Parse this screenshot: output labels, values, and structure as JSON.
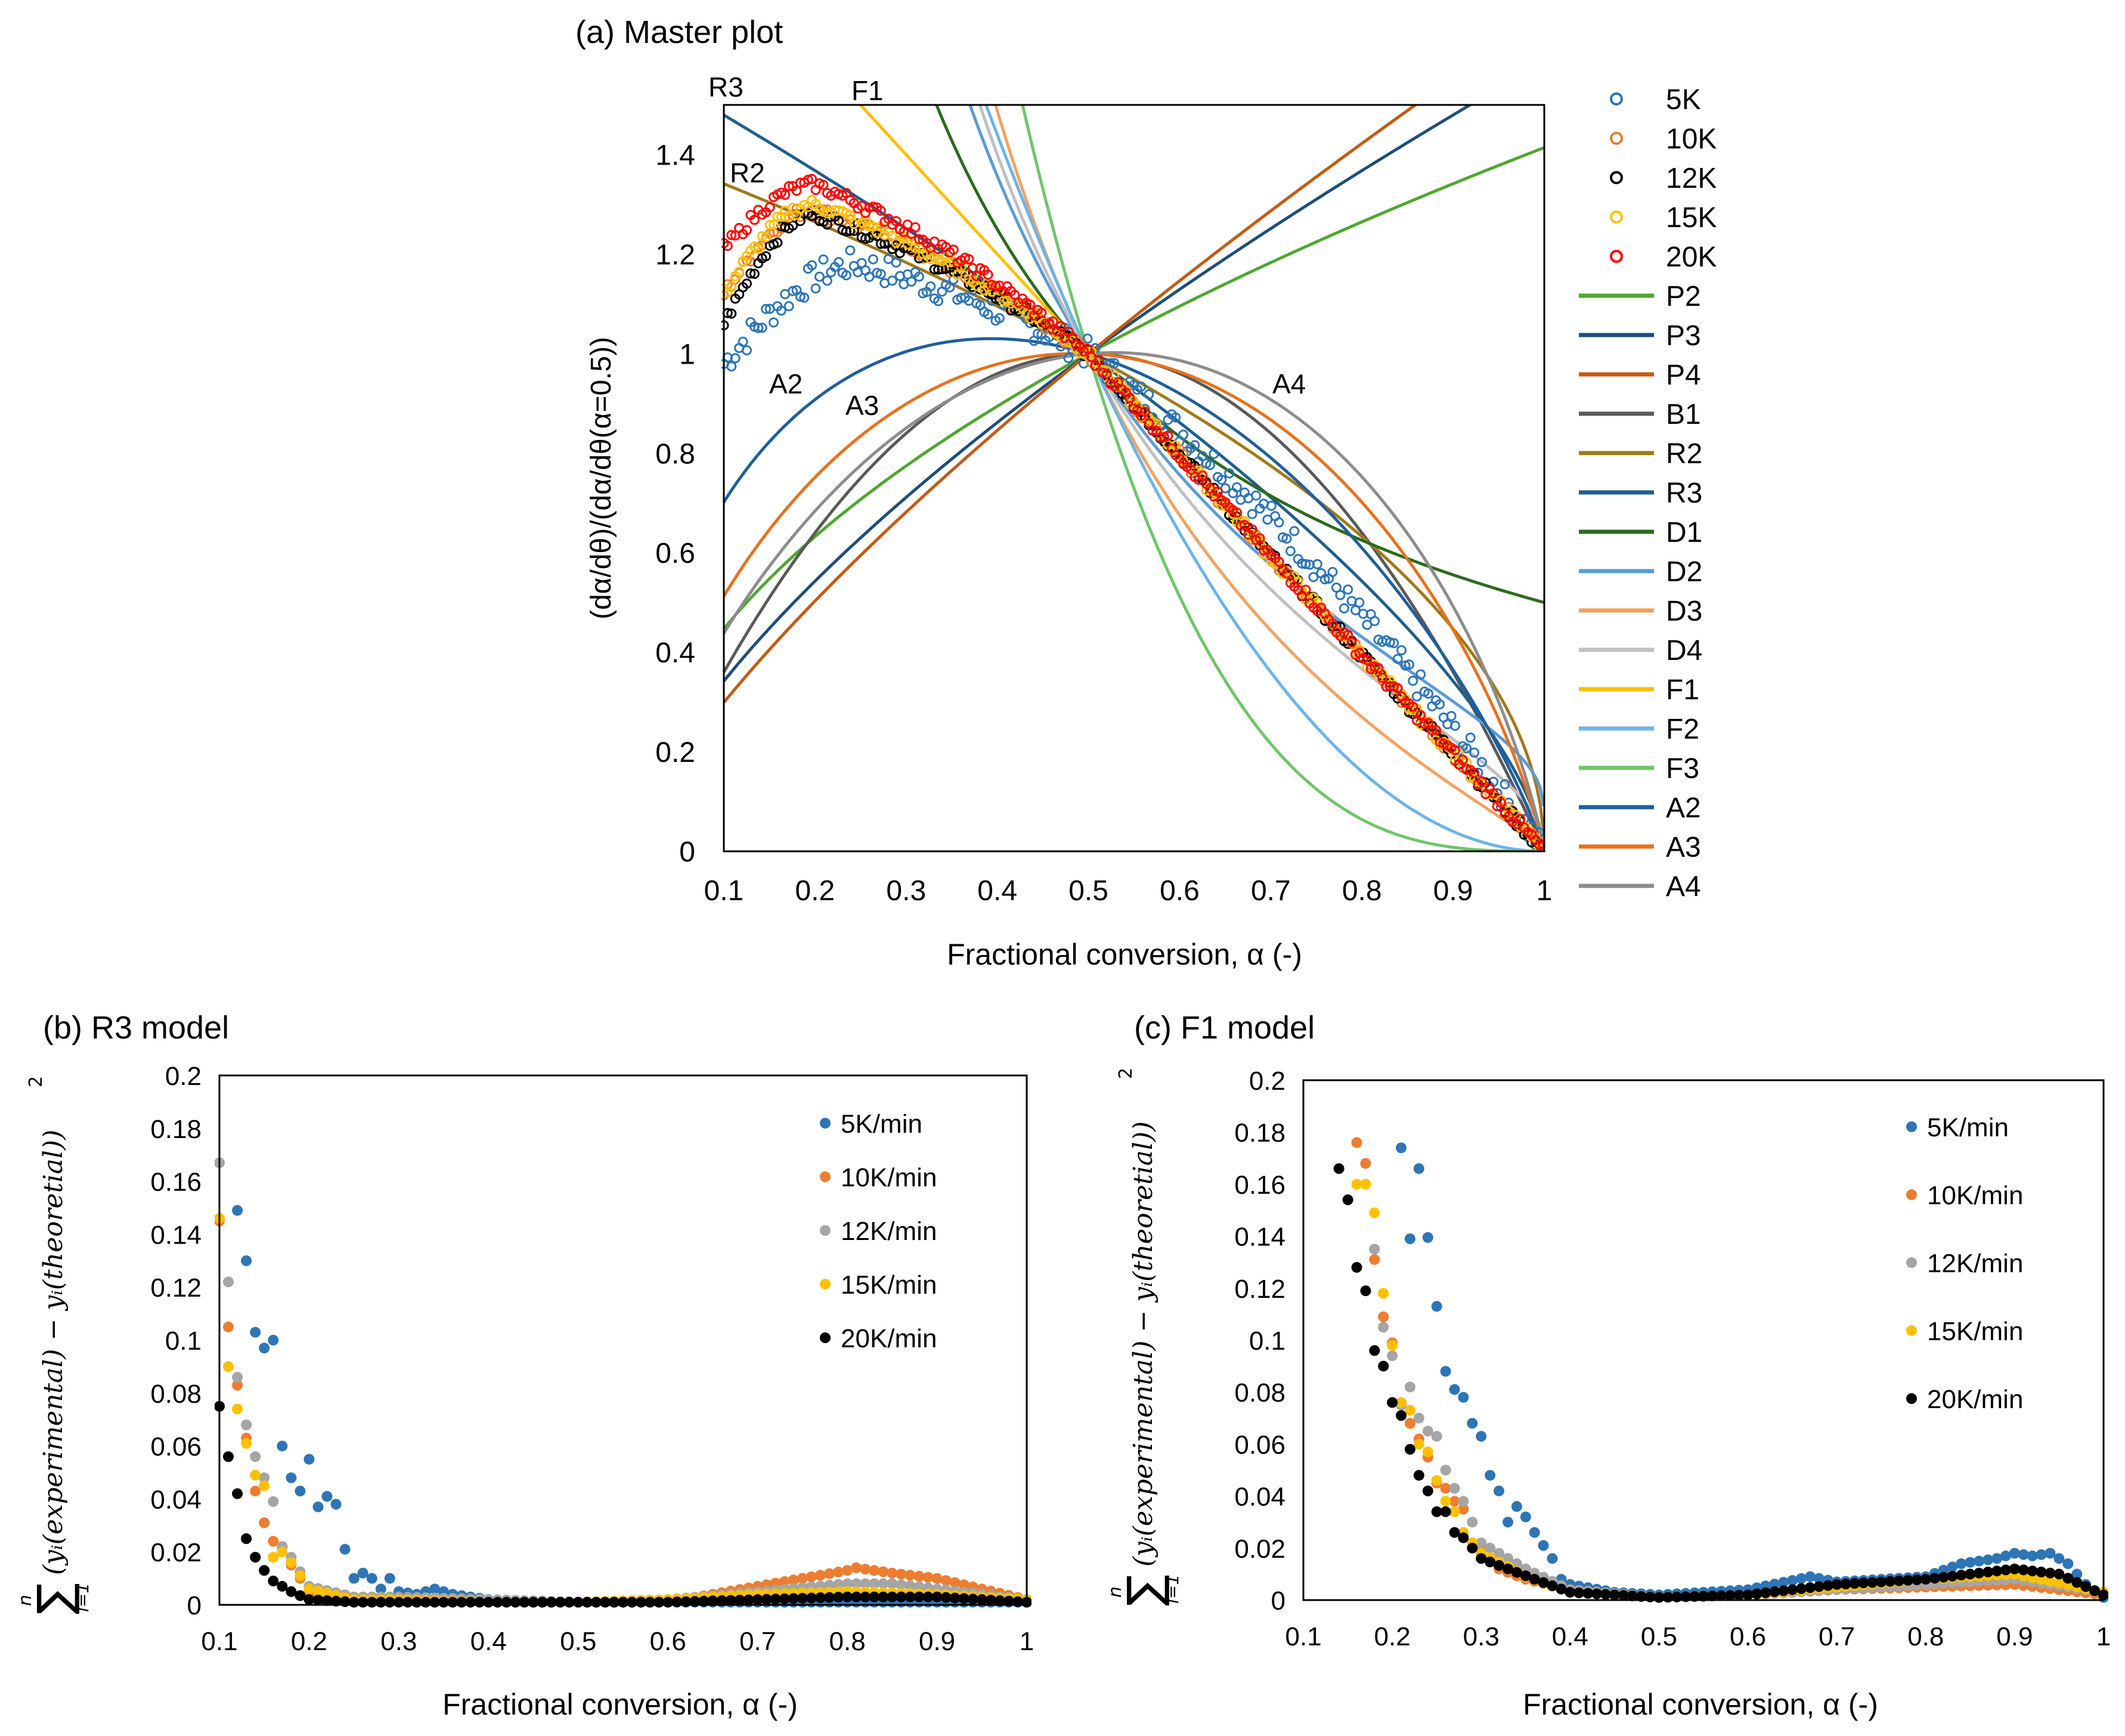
{
  "chart_data": [
    {
      "id": "a",
      "type": "scatter+line",
      "title": "(a) Master plot",
      "xlabel": "Fractional conversion, α (-)",
      "ylabel": "(dα/dθ)/(dα/dθ(α=0.5))",
      "xlim": [
        0.1,
        1
      ],
      "ylim": [
        0,
        1.5
      ],
      "xticks": [
        "0.1",
        "0.2",
        "0.3",
        "0.4",
        "0.5",
        "0.6",
        "0.7",
        "0.8",
        "0.9",
        "1"
      ],
      "yticks": [
        "0",
        "0.2",
        "0.4",
        "0.6",
        "0.8",
        "1",
        "1.2",
        "1.4"
      ],
      "experimental": [
        {
          "name": "5K",
          "color": "#2E75B6",
          "peak_x": 0.25,
          "peak_y": 1.18,
          "start_y": 0.98
        },
        {
          "name": "10K",
          "color": "#ED7D31",
          "peak_x": 0.2,
          "peak_y": 1.29,
          "start_y": 1.12
        },
        {
          "name": "12K",
          "color": "#000000",
          "peak_x": 0.2,
          "peak_y": 1.28,
          "start_y": 1.06
        },
        {
          "name": "15K",
          "color": "#FFC000",
          "peak_x": 0.2,
          "peak_y": 1.3,
          "start_y": 1.12
        },
        {
          "name": "20K",
          "color": "#FF0000",
          "peak_x": 0.2,
          "peak_y": 1.34,
          "start_y": 1.21
        }
      ],
      "models": [
        {
          "name": "P2",
          "color": "#4EA72E"
        },
        {
          "name": "P3",
          "color": "#1F4E79"
        },
        {
          "name": "P4",
          "color": "#C55A11"
        },
        {
          "name": "B1",
          "color": "#595959"
        },
        {
          "name": "R2",
          "color": "#A07A1A"
        },
        {
          "name": "R3",
          "color": "#1F5F8B"
        },
        {
          "name": "D1",
          "color": "#2D6A1F"
        },
        {
          "name": "D2",
          "color": "#5B9BD5"
        },
        {
          "name": "D3",
          "color": "#F4A261"
        },
        {
          "name": "D4",
          "color": "#BFBFBF"
        },
        {
          "name": "F1",
          "color": "#FFC000"
        },
        {
          "name": "F2",
          "color": "#6CB4E8"
        },
        {
          "name": "F3",
          "color": "#70C56A"
        },
        {
          "name": "A2",
          "color": "#1F5F9B"
        },
        {
          "name": "A3",
          "color": "#E8711C"
        },
        {
          "name": "A4",
          "color": "#8C8C8C"
        }
      ],
      "annotations": [
        "R3",
        "F1",
        "R2",
        "A2",
        "A3",
        "A4"
      ]
    },
    {
      "id": "b",
      "type": "scatter",
      "title": "(b) R3 model",
      "xlabel": "Fractional conversion, α (-)",
      "ylabel_parts": {
        "sum_top": "n",
        "sum_bottom": "i=1",
        "expr": "(yᵢ(experimental) − yᵢ(theoretial))",
        "exp": "2"
      },
      "xlim": [
        0.1,
        1
      ],
      "ylim": [
        0,
        0.2
      ],
      "xticks": [
        "0.1",
        "0.2",
        "0.3",
        "0.4",
        "0.5",
        "0.6",
        "0.7",
        "0.8",
        "0.9",
        "1"
      ],
      "yticks": [
        "0",
        "0.02",
        "0.04",
        "0.06",
        "0.08",
        "0.1",
        "0.12",
        "0.14",
        "0.16",
        "0.18",
        "0.2"
      ],
      "series": [
        {
          "name": "5K/min",
          "color": "#2E75B6",
          "x": [
            0.12,
            0.13,
            0.14,
            0.15,
            0.16,
            0.17,
            0.18,
            0.19,
            0.2,
            0.21,
            0.22,
            0.23,
            0.24,
            0.25,
            0.26,
            0.27,
            0.28,
            0.29,
            0.3,
            0.32,
            0.34,
            0.36,
            0.4,
            0.5,
            0.6,
            0.7,
            0.8,
            0.9,
            1.0
          ],
          "values": [
            0.149,
            0.13,
            0.103,
            0.097,
            0.1,
            0.06,
            0.048,
            0.043,
            0.055,
            0.037,
            0.041,
            0.038,
            0.021,
            0.01,
            0.012,
            0.01,
            0.006,
            0.01,
            0.005,
            0.004,
            0.006,
            0.004,
            0.002,
            0.001,
            0.001,
            0.001,
            0.001,
            0.001,
            0.001
          ]
        },
        {
          "name": "10K/min",
          "color": "#ED7D31",
          "x": [
            0.1,
            0.11,
            0.12,
            0.13,
            0.14,
            0.15,
            0.16,
            0.17,
            0.18,
            0.2,
            0.25,
            0.3,
            0.4,
            0.5,
            0.6,
            0.65,
            0.7,
            0.75,
            0.8,
            0.81,
            0.85,
            0.9,
            0.95,
            1.0
          ],
          "values": [
            0.145,
            0.105,
            0.083,
            0.063,
            0.043,
            0.031,
            0.024,
            0.022,
            0.015,
            0.005,
            0.002,
            0.002,
            0.001,
            0.001,
            0.001,
            0.004,
            0.007,
            0.01,
            0.013,
            0.014,
            0.012,
            0.01,
            0.006,
            0.002
          ]
        },
        {
          "name": "12K/min",
          "color": "#A5A5A5",
          "x": [
            0.1,
            0.11,
            0.12,
            0.13,
            0.14,
            0.15,
            0.16,
            0.17,
            0.18,
            0.2,
            0.25,
            0.3,
            0.4,
            0.5,
            0.6,
            0.7,
            0.8,
            0.85,
            0.9,
            0.95,
            1.0
          ],
          "values": [
            0.167,
            0.122,
            0.086,
            0.068,
            0.056,
            0.048,
            0.039,
            0.022,
            0.018,
            0.007,
            0.003,
            0.003,
            0.002,
            0.001,
            0.002,
            0.005,
            0.008,
            0.008,
            0.006,
            0.004,
            0.002
          ]
        },
        {
          "name": "15K/min",
          "color": "#FFC000",
          "x": [
            0.1,
            0.11,
            0.12,
            0.13,
            0.14,
            0.15,
            0.16,
            0.17,
            0.18,
            0.2,
            0.25,
            0.3,
            0.4,
            0.5,
            0.6,
            0.7,
            0.8,
            0.9,
            1.0
          ],
          "values": [
            0.146,
            0.09,
            0.074,
            0.061,
            0.049,
            0.045,
            0.018,
            0.02,
            0.016,
            0.006,
            0.002,
            0.002,
            0.001,
            0.001,
            0.002,
            0.004,
            0.005,
            0.004,
            0.002
          ]
        },
        {
          "name": "20K/min",
          "color": "#000000",
          "x": [
            0.1,
            0.11,
            0.12,
            0.13,
            0.14,
            0.15,
            0.16,
            0.17,
            0.18,
            0.2,
            0.25,
            0.3,
            0.4,
            0.5,
            0.6,
            0.7,
            0.8,
            0.9,
            1.0
          ],
          "values": [
            0.075,
            0.056,
            0.042,
            0.025,
            0.018,
            0.013,
            0.009,
            0.007,
            0.005,
            0.002,
            0.001,
            0.001,
            0.001,
            0.001,
            0.001,
            0.002,
            0.003,
            0.003,
            0.001
          ]
        }
      ]
    },
    {
      "id": "c",
      "type": "scatter",
      "title": "(c) F1 model",
      "xlabel": "Fractional conversion, α (-)",
      "ylabel_parts": {
        "sum_top": "n",
        "sum_bottom": "i=1",
        "expr": "(yᵢ(experimental) − yᵢ(theoretial))",
        "exp": "2"
      },
      "xlim": [
        0.1,
        1
      ],
      "ylim": [
        0,
        0.2
      ],
      "xticks": [
        "0.1",
        "0.2",
        "0.3",
        "0.4",
        "0.5",
        "0.6",
        "0.7",
        "0.8",
        "0.9",
        "1"
      ],
      "yticks": [
        "0",
        "0.02",
        "0.04",
        "0.06",
        "0.08",
        "0.1",
        "0.12",
        "0.14",
        "0.16",
        "0.18",
        "0.2"
      ],
      "series": [
        {
          "name": "5K/min",
          "color": "#2E75B6",
          "x": [
            0.21,
            0.22,
            0.23,
            0.25,
            0.26,
            0.27,
            0.28,
            0.29,
            0.3,
            0.31,
            0.32,
            0.33,
            0.34,
            0.35,
            0.36,
            0.37,
            0.38,
            0.39,
            0.4,
            0.45,
            0.5,
            0.6,
            0.67,
            0.7,
            0.8,
            0.84,
            0.88,
            0.9,
            0.92,
            0.94,
            0.96,
            0.98,
            1.0
          ],
          "values": [
            0.174,
            0.139,
            0.166,
            0.113,
            0.088,
            0.081,
            0.078,
            0.068,
            0.063,
            0.048,
            0.042,
            0.03,
            0.036,
            0.032,
            0.026,
            0.021,
            0.016,
            0.008,
            0.006,
            0.003,
            0.002,
            0.004,
            0.009,
            0.007,
            0.009,
            0.014,
            0.016,
            0.018,
            0.017,
            0.018,
            0.014,
            0.006,
            0.001
          ]
        },
        {
          "name": "10K/min",
          "color": "#ED7D31",
          "x": [
            0.16,
            0.17,
            0.18,
            0.19,
            0.2,
            0.21,
            0.22,
            0.23,
            0.24,
            0.25,
            0.26,
            0.27,
            0.28,
            0.29,
            0.3,
            0.32,
            0.35,
            0.4,
            0.5,
            0.6,
            0.7,
            0.8,
            0.9,
            1.0
          ],
          "values": [
            0.176,
            0.168,
            0.131,
            0.109,
            0.099,
            0.076,
            0.068,
            0.062,
            0.055,
            0.045,
            0.043,
            0.038,
            0.035,
            0.02,
            0.02,
            0.012,
            0.008,
            0.004,
            0.001,
            0.002,
            0.004,
            0.005,
            0.006,
            0.002
          ]
        },
        {
          "name": "12K/min",
          "color": "#A5A5A5",
          "x": [
            0.17,
            0.18,
            0.19,
            0.2,
            0.21,
            0.22,
            0.23,
            0.24,
            0.25,
            0.26,
            0.27,
            0.28,
            0.3,
            0.33,
            0.35,
            0.4,
            0.5,
            0.6,
            0.7,
            0.8,
            0.9,
            1.0
          ],
          "values": [
            0.16,
            0.135,
            0.105,
            0.094,
            0.075,
            0.082,
            0.07,
            0.065,
            0.063,
            0.05,
            0.043,
            0.038,
            0.022,
            0.016,
            0.012,
            0.004,
            0.001,
            0.002,
            0.004,
            0.006,
            0.008,
            0.003
          ]
        },
        {
          "name": "15K/min",
          "color": "#FFC000",
          "x": [
            0.16,
            0.17,
            0.18,
            0.19,
            0.2,
            0.21,
            0.22,
            0.23,
            0.24,
            0.25,
            0.26,
            0.27,
            0.28,
            0.3,
            0.33,
            0.35,
            0.4,
            0.5,
            0.6,
            0.7,
            0.8,
            0.9,
            1.0
          ],
          "values": [
            0.16,
            0.16,
            0.149,
            0.118,
            0.098,
            0.076,
            0.073,
            0.06,
            0.057,
            0.046,
            0.038,
            0.034,
            0.026,
            0.018,
            0.013,
            0.009,
            0.003,
            0.001,
            0.002,
            0.005,
            0.008,
            0.01,
            0.003
          ]
        },
        {
          "name": "20K/min",
          "color": "#000000",
          "x": [
            0.14,
            0.15,
            0.16,
            0.17,
            0.18,
            0.19,
            0.2,
            0.21,
            0.22,
            0.23,
            0.24,
            0.25,
            0.26,
            0.27,
            0.28,
            0.3,
            0.33,
            0.36,
            0.4,
            0.5,
            0.6,
            0.7,
            0.8,
            0.9,
            0.95,
            1.0
          ],
          "values": [
            0.166,
            0.154,
            0.128,
            0.119,
            0.096,
            0.09,
            0.076,
            0.071,
            0.058,
            0.048,
            0.042,
            0.034,
            0.034,
            0.026,
            0.024,
            0.016,
            0.012,
            0.008,
            0.003,
            0.001,
            0.002,
            0.006,
            0.008,
            0.012,
            0.01,
            0.002
          ]
        }
      ]
    }
  ]
}
